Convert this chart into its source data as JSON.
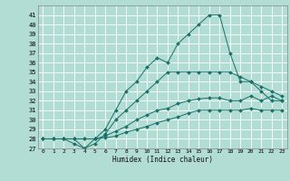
{
  "title": "",
  "xlabel": "Humidex (Indice chaleur)",
  "background_color": "#b2ddd4",
  "grid_color": "#ffffff",
  "line_color": "#1a7068",
  "xlim": [
    -0.5,
    23.5
  ],
  "ylim": [
    27,
    42
  ],
  "x_ticks": [
    0,
    1,
    2,
    3,
    4,
    5,
    6,
    7,
    8,
    9,
    10,
    11,
    12,
    13,
    14,
    15,
    16,
    17,
    18,
    19,
    20,
    21,
    22,
    23
  ],
  "y_ticks": [
    27,
    28,
    29,
    30,
    31,
    32,
    33,
    34,
    35,
    36,
    37,
    38,
    39,
    40,
    41
  ],
  "lines": [
    {
      "x": [
        0,
        1,
        2,
        3,
        4,
        5,
        6,
        7,
        8,
        9,
        10,
        11,
        12,
        13,
        14,
        15,
        16,
        17,
        18,
        19,
        20,
        21,
        22,
        23
      ],
      "y": [
        28,
        28,
        28,
        28,
        27,
        28,
        29,
        31,
        33,
        34,
        35.5,
        36.5,
        36,
        38,
        39,
        40,
        41,
        41,
        37,
        34,
        34,
        33,
        32,
        32
      ]
    },
    {
      "x": [
        0,
        1,
        2,
        3,
        4,
        5,
        6,
        7,
        8,
        9,
        10,
        11,
        12,
        13,
        14,
        15,
        16,
        17,
        18,
        19,
        20,
        21,
        22,
        23
      ],
      "y": [
        28,
        28,
        28,
        27.5,
        27,
        27.5,
        28.5,
        30,
        31,
        32,
        33,
        34,
        35,
        35,
        35,
        35,
        35,
        35,
        35,
        34.5,
        34,
        33.5,
        33,
        32.5
      ]
    },
    {
      "x": [
        0,
        1,
        2,
        3,
        4,
        5,
        6,
        7,
        8,
        9,
        10,
        11,
        12,
        13,
        14,
        15,
        16,
        17,
        18,
        19,
        20,
        21,
        22,
        23
      ],
      "y": [
        28,
        28,
        28,
        28,
        28,
        28,
        28.3,
        28.8,
        29.3,
        30,
        30.5,
        31,
        31.2,
        31.7,
        32,
        32.2,
        32.3,
        32.3,
        32,
        32,
        32.5,
        32,
        32.5,
        32
      ]
    },
    {
      "x": [
        0,
        1,
        2,
        3,
        4,
        5,
        6,
        7,
        8,
        9,
        10,
        11,
        12,
        13,
        14,
        15,
        16,
        17,
        18,
        19,
        20,
        21,
        22,
        23
      ],
      "y": [
        28,
        28,
        28,
        28,
        28,
        28,
        28.1,
        28.3,
        28.7,
        29.0,
        29.3,
        29.7,
        30,
        30.3,
        30.7,
        31,
        31,
        31,
        31,
        31,
        31.2,
        31,
        31,
        31
      ]
    }
  ]
}
